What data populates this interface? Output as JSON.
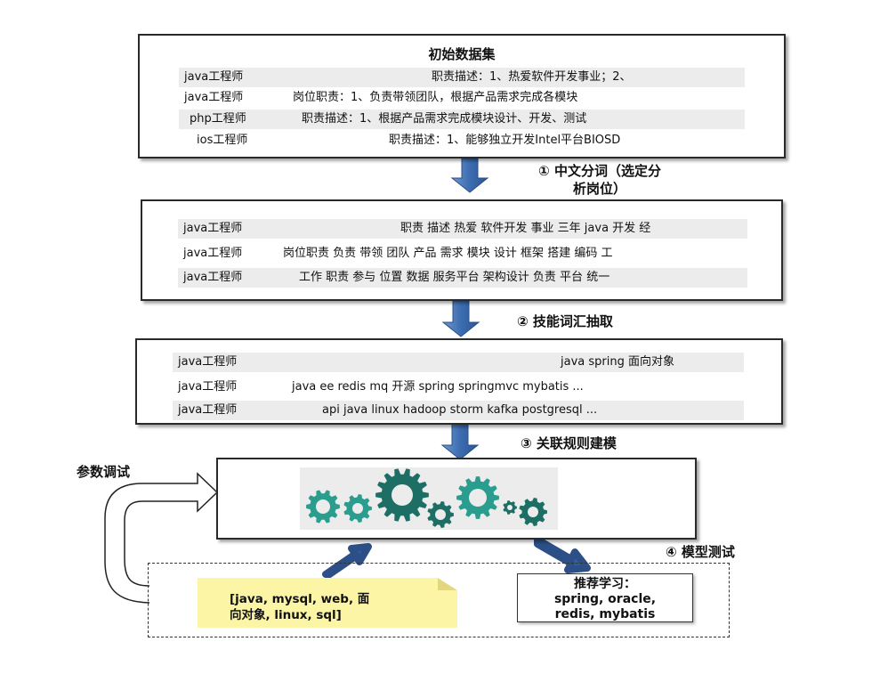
{
  "box1": {
    "title": "初始数据集",
    "rows": [
      {
        "label": "java工程师",
        "text": "职责描述：1、热爱软件开发事业；2、"
      },
      {
        "label": "java工程师",
        "text": "岗位职责：1、负责带领团队，根据产品需求完成各模块"
      },
      {
        "label": "php工程师",
        "text": "职责描述：1、根据产品需求完成模块设计、开发、测试"
      },
      {
        "label": "ios工程师",
        "text": "职责描述：1、能够独立开发Intel平台BIOSD"
      }
    ]
  },
  "step1": {
    "line1": "① 中文分词（选定分",
    "line2": "析岗位）"
  },
  "box2": {
    "rows": [
      {
        "label": "java工程师",
        "text": "职责 描述 热爱 软件开发 事业 三年 java 开发 经"
      },
      {
        "label": "java工程师",
        "text": "岗位职责 负责 带领 团队 产品 需求 模块 设计 框架 搭建 编码 工"
      },
      {
        "label": "java工程师",
        "text": "工作 职责 参与 位置 数据 服务平台 架构设计 负责 平台 统一"
      }
    ]
  },
  "step2": "② 技能词汇抽取",
  "box3": {
    "rows": [
      {
        "label": "java工程师",
        "text": "java spring 面向对象"
      },
      {
        "label": "java工程师",
        "text": "java ee redis mq 开源 spring springmvc mybatis ..."
      },
      {
        "label": "java工程师",
        "text": "api java linux hadoop storm kafka postgresql ..."
      }
    ]
  },
  "step3": "③ 关联规则建模",
  "param_label": "参数调试",
  "step4": "④ 模型测试",
  "input_note": {
    "line1": "[java, mysql, web, 面",
    "line2": "向对象, linux, sql]"
  },
  "recommend": {
    "line1": "推荐学习：",
    "line2": "spring, oracle,",
    "line3": "redis, mybatis"
  },
  "colors": {
    "arrow": "#3d6fb0",
    "gear": "#2a9d8f",
    "gear_dark": "#1d6f65",
    "note_bg": "#fdf5a6"
  }
}
